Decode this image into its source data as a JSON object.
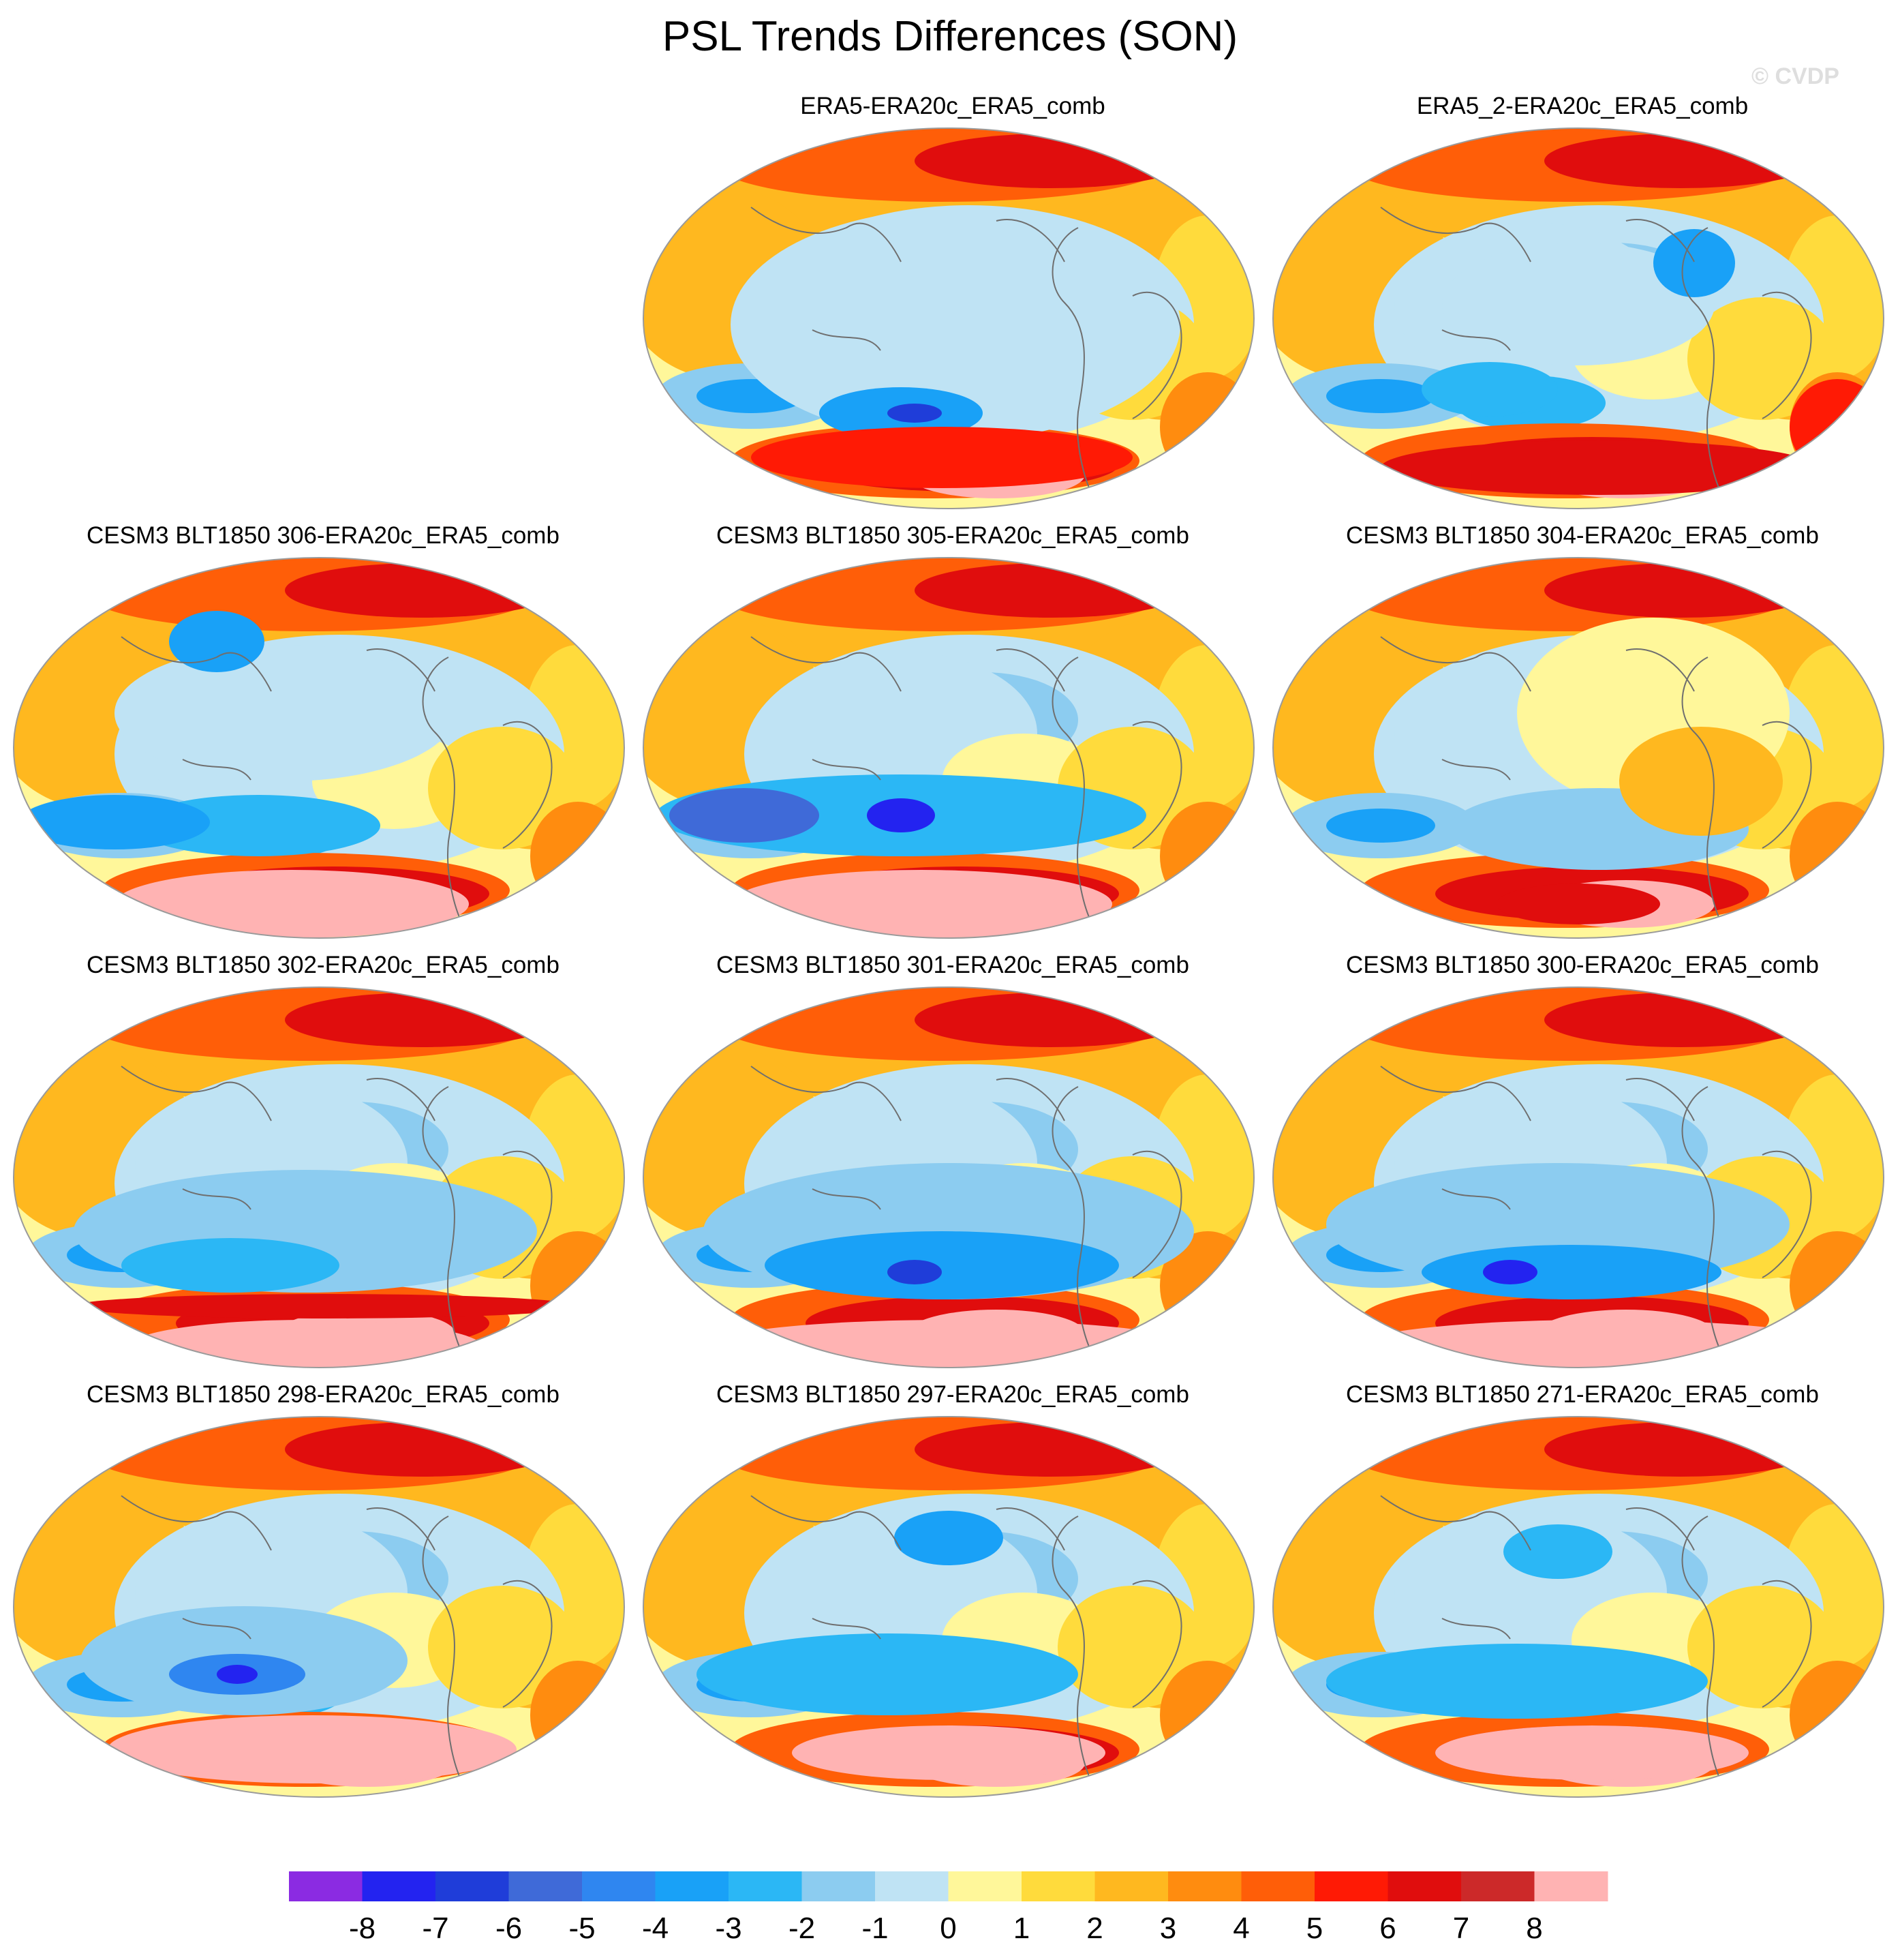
{
  "chart_data": {
    "type": "heatmap",
    "title": "PSL Trends Differences (SON)",
    "watermark": "© CVDP",
    "panels": [
      {
        "title": "ERA5-ERA20c_ERA5_comb",
        "slot": [
          0,
          1
        ]
      },
      {
        "title": "ERA5_2-ERA20c_ERA5_comb",
        "slot": [
          0,
          2
        ]
      },
      {
        "title": "CESM3 BLT1850 306-ERA20c_ERA5_comb",
        "slot": [
          1,
          0
        ]
      },
      {
        "title": "CESM3 BLT1850 305-ERA20c_ERA5_comb",
        "slot": [
          1,
          1
        ]
      },
      {
        "title": "CESM3 BLT1850 304-ERA20c_ERA5_comb",
        "slot": [
          1,
          2
        ]
      },
      {
        "title": "CESM3 BLT1850 302-ERA20c_ERA5_comb",
        "slot": [
          2,
          0
        ]
      },
      {
        "title": "CESM3 BLT1850 301-ERA20c_ERA5_comb",
        "slot": [
          2,
          1
        ]
      },
      {
        "title": "CESM3 BLT1850 300-ERA20c_ERA5_comb",
        "slot": [
          2,
          2
        ]
      },
      {
        "title": "CESM3 BLT1850 298-ERA20c_ERA5_comb",
        "slot": [
          3,
          0
        ]
      },
      {
        "title": "CESM3 BLT1850 297-ERA20c_ERA5_comb",
        "slot": [
          3,
          1
        ]
      },
      {
        "title": "CESM3 BLT1850 271-ERA20c_ERA5_comb",
        "slot": [
          3,
          2
        ]
      }
    ],
    "colorbar": {
      "ticks": [
        "-8",
        "-7",
        "-6",
        "-5",
        "-4",
        "-3",
        "-2",
        "-1",
        "0",
        "1",
        "2",
        "3",
        "4",
        "5",
        "6",
        "7",
        "8"
      ],
      "colors": [
        "#8b2be2",
        "#2323f0",
        "#1f3dd9",
        "#3f6ad8",
        "#2f86f0",
        "#19a1f7",
        "#2bb7f5",
        "#8cccf0",
        "#bfe3f4",
        "#fff79a",
        "#ffdb3c",
        "#ffb81f",
        "#ff8c0f",
        "#ff5e08",
        "#ff1a05",
        "#e00d0d",
        "#cc2929",
        "#ffb3b3"
      ]
    },
    "colors": {
      "ocean_light_blue": "#bfe3f4",
      "pale_yellow": "#fff79a",
      "deep_red": "#e00d0d",
      "pink": "#ffb3b3"
    }
  }
}
